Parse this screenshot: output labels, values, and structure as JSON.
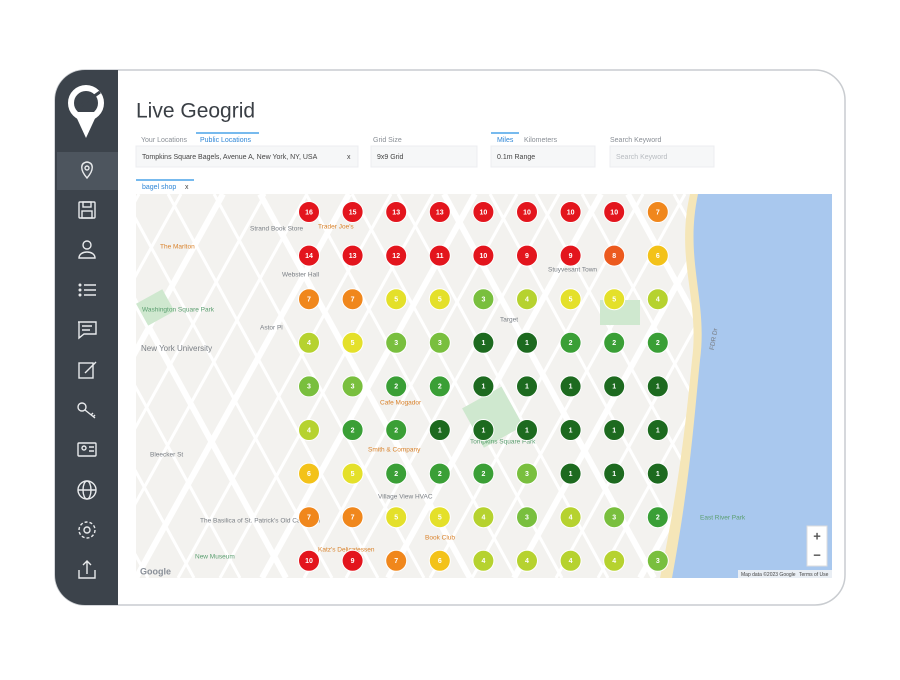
{
  "header": {
    "title": "Live Geogrid"
  },
  "form": {
    "location_tabs": [
      "Your Locations",
      "Public Locations"
    ],
    "location": "Tompkins Square Bagels, Avenue A, New York, NY, USA",
    "clear": "x",
    "grid_size_label": "Grid Size",
    "grid_size": "9x9 Grid",
    "unit_tabs": [
      "Miles",
      "Kilometers"
    ],
    "range": "0.1m Range",
    "keyword_label": "Search Keyword",
    "keyword_placeholder": "Search Keyword",
    "keyword_tag": "bagel shop",
    "tag_remove": "x"
  },
  "map": {
    "labels": [
      "Strand Book Store",
      "Trader Joe's",
      "The Marlton",
      "Webster Hall",
      "Astor Pl",
      "New York University",
      "Target",
      "Tompkins Square Park",
      "Bleecker St",
      "Village View HVAC",
      "The Basilica of St. Patrick's Old Cathedral",
      "New Museum",
      "Katz's Delicatessen",
      "Book Club",
      "Cafe Mogador",
      "Smith & Company",
      "Stuyvesant Town",
      "FDR Dr",
      "East River Park",
      "Washington Square Park"
    ],
    "logo": "Google",
    "attribution": "Map data ©2023 Google",
    "terms": "Terms of Use",
    "zoom_in": "+",
    "zoom_out": "−"
  },
  "grid": {
    "rows": [
      [
        16,
        15,
        13,
        13,
        10,
        10,
        10,
        10,
        7
      ],
      [
        14,
        13,
        12,
        11,
        10,
        9,
        9,
        8,
        6
      ],
      [
        7,
        7,
        5,
        5,
        3,
        4,
        5,
        5,
        4
      ],
      [
        4,
        5,
        3,
        3,
        1,
        1,
        2,
        2,
        2
      ],
      [
        3,
        3,
        2,
        2,
        1,
        1,
        1,
        1,
        1
      ],
      [
        4,
        2,
        2,
        1,
        1,
        1,
        1,
        1,
        1
      ],
      [
        6,
        5,
        2,
        2,
        2,
        3,
        1,
        1,
        1
      ],
      [
        7,
        7,
        5,
        5,
        4,
        3,
        4,
        3,
        2
      ],
      [
        10,
        9,
        7,
        6,
        4,
        4,
        4,
        4,
        3
      ]
    ]
  }
}
